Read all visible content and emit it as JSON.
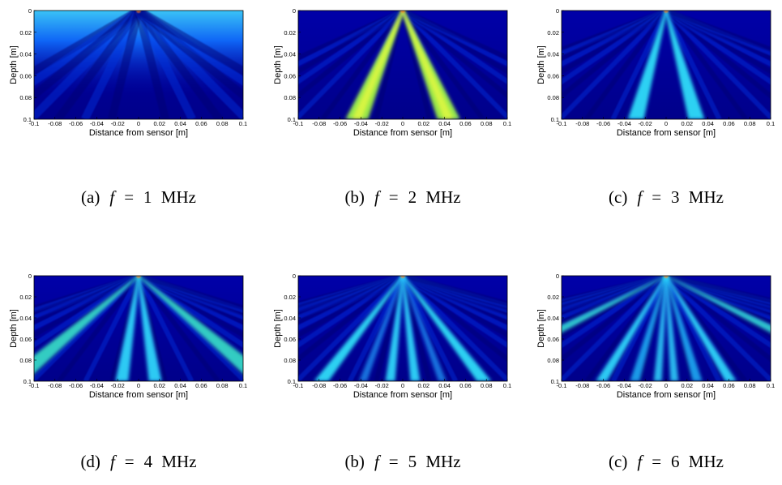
{
  "figure": {
    "panels": [
      {
        "x_label": "Distance from sensor [m]",
        "y_label": "Depth [m]",
        "xlim": [
          -0.1,
          0.1
        ],
        "ylim": [
          0,
          0.1
        ],
        "xticks": [
          -0.1,
          -0.08,
          -0.06,
          -0.04,
          -0.02,
          0,
          0.02,
          0.04,
          0.06,
          0.08,
          0.1
        ],
        "yticks": [
          0,
          0.02,
          0.04,
          0.06,
          0.08,
          0.1
        ],
        "caption": {
          "label": "(a)",
          "symbol": "f",
          "equals": "=",
          "value": "1 MHz"
        }
      },
      {
        "x_label": "Distance from sensor [m]",
        "y_label": "Depth [m]",
        "xlim": [
          -0.1,
          0.1
        ],
        "ylim": [
          0,
          0.1
        ],
        "xticks": [
          -0.1,
          -0.08,
          -0.06,
          -0.04,
          -0.02,
          0,
          0.02,
          0.04,
          0.06,
          0.08,
          0.1
        ],
        "yticks": [
          0,
          0.02,
          0.04,
          0.06,
          0.08,
          0.1
        ],
        "caption": {
          "label": "(b)",
          "symbol": "f",
          "equals": "=",
          "value": "2 MHz"
        }
      },
      {
        "x_label": "Distance from sensor [m]",
        "y_label": "Depth [m]",
        "xlim": [
          -0.1,
          0.1
        ],
        "ylim": [
          0,
          0.1
        ],
        "xticks": [
          -0.1,
          -0.08,
          -0.06,
          -0.04,
          -0.02,
          0,
          0.02,
          0.04,
          0.06,
          0.08,
          0.1
        ],
        "yticks": [
          0,
          0.02,
          0.04,
          0.06,
          0.08,
          0.1
        ],
        "caption": {
          "label": "(c)",
          "symbol": "f",
          "equals": "=",
          "value": "3 MHz"
        }
      },
      {
        "x_label": "Distance from sensor [m]",
        "y_label": "Depth [m]",
        "xlim": [
          -0.1,
          0.1
        ],
        "ylim": [
          0,
          0.1
        ],
        "xticks": [
          -0.1,
          -0.08,
          -0.06,
          -0.04,
          -0.02,
          0,
          0.02,
          0.04,
          0.06,
          0.08,
          0.1
        ],
        "yticks": [
          0,
          0.02,
          0.04,
          0.06,
          0.08,
          0.1
        ],
        "caption": {
          "label": "(d)",
          "symbol": "f",
          "equals": "=",
          "value": "4 MHz"
        }
      },
      {
        "x_label": "Distance from sensor [m]",
        "y_label": "Depth [m]",
        "xlim": [
          -0.1,
          0.1
        ],
        "ylim": [
          0,
          0.1
        ],
        "xticks": [
          -0.1,
          -0.08,
          -0.06,
          -0.04,
          -0.02,
          0,
          0.02,
          0.04,
          0.06,
          0.08,
          0.1
        ],
        "yticks": [
          0,
          0.02,
          0.04,
          0.06,
          0.08,
          0.1
        ],
        "caption": {
          "label": "(b)",
          "symbol": "f",
          "equals": "=",
          "value": "5 MHz"
        }
      },
      {
        "x_label": "Distance from sensor [m]",
        "y_label": "Depth [m]",
        "xlim": [
          -0.1,
          0.1
        ],
        "ylim": [
          0,
          0.1
        ],
        "xticks": [
          -0.1,
          -0.08,
          -0.06,
          -0.04,
          -0.02,
          0,
          0.02,
          0.04,
          0.06,
          0.08,
          0.1
        ],
        "yticks": [
          0,
          0.02,
          0.04,
          0.06,
          0.08,
          0.1
        ],
        "caption": {
          "label": "(c)",
          "symbol": "f",
          "equals": "=",
          "value": "6 MHz"
        }
      }
    ]
  }
}
